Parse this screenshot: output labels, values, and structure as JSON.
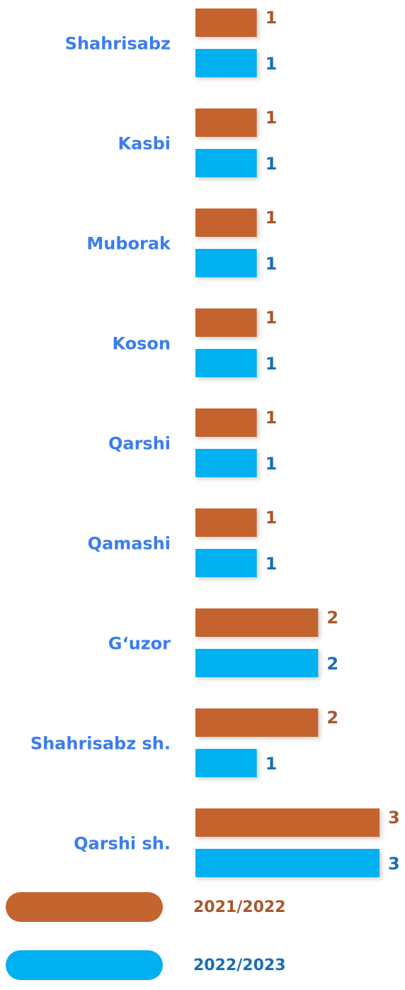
{
  "chart_data": {
    "type": "bar",
    "orientation": "horizontal",
    "categories": [
      "Shahrisabz",
      "Kasbi",
      "Muborak",
      "Koson",
      "Qarshi",
      "Qamashi",
      "G‘uzor",
      "Shahrisabz sh.",
      "Qarshi sh."
    ],
    "series": [
      {
        "name": "2021/2022",
        "color": "#c4642f",
        "label_color": "#a8582c",
        "values": [
          1,
          1,
          1,
          1,
          1,
          1,
          2,
          2,
          3
        ]
      },
      {
        "name": "2022/2023",
        "color": "#00b0f0",
        "label_color": "#1a6db5",
        "values": [
          1,
          1,
          1,
          1,
          1,
          1,
          2,
          1,
          3
        ]
      }
    ]
  }
}
